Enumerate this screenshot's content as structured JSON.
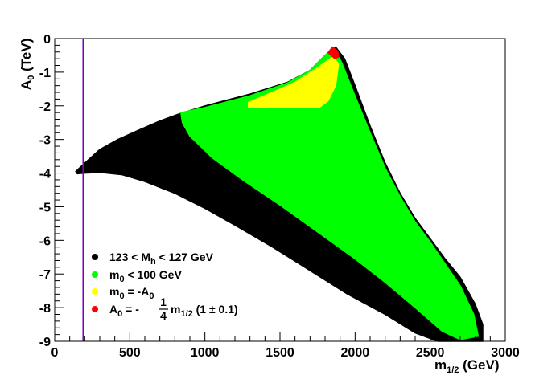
{
  "chart_data": {
    "type": "scatter",
    "xlabel": {
      "main": "m",
      "sub": "1/2",
      "unit": " (GeV)"
    },
    "ylabel": {
      "main": "A",
      "sub": "0",
      "unit": " (TeV)"
    },
    "xlim": [
      0,
      3000
    ],
    "ylim": [
      -9,
      0
    ],
    "x_ticks": [
      "0",
      "500",
      "1000",
      "1500",
      "2000",
      "2500",
      "3000"
    ],
    "y_ticks": [
      "0",
      "-1",
      "-2",
      "-3",
      "-4",
      "-5",
      "-6",
      "-7",
      "-8",
      "-9"
    ],
    "grid": false,
    "legend_placement": "bottom-left",
    "vertical_line": {
      "x": 190,
      "color": "#8000c0"
    },
    "series": [
      {
        "key": "higgs",
        "legend": {
          "a": "123 < M",
          "a_sub": "h",
          "b": " < 127 GeV"
        },
        "color": "#000000",
        "region": [
          [
            140,
            -3.95
          ],
          [
            200,
            -3.7
          ],
          [
            300,
            -3.3
          ],
          [
            420,
            -3.0
          ],
          [
            560,
            -2.72
          ],
          [
            700,
            -2.45
          ],
          [
            820,
            -2.25
          ],
          [
            1000,
            -2.0
          ],
          [
            1300,
            -1.65
          ],
          [
            1550,
            -1.3
          ],
          [
            1700,
            -0.95
          ],
          [
            1800,
            -0.5
          ],
          [
            1870,
            -0.25
          ],
          [
            1930,
            -0.6
          ],
          [
            2000,
            -1.4
          ],
          [
            2100,
            -2.6
          ],
          [
            2200,
            -3.7
          ],
          [
            2300,
            -4.6
          ],
          [
            2400,
            -5.35
          ],
          [
            2500,
            -5.95
          ],
          [
            2600,
            -6.55
          ],
          [
            2700,
            -7.1
          ],
          [
            2800,
            -7.9
          ],
          [
            2850,
            -8.5
          ],
          [
            2850,
            -9.0
          ],
          [
            2550,
            -9.0
          ],
          [
            2400,
            -8.75
          ],
          [
            2200,
            -8.2
          ],
          [
            1950,
            -7.6
          ],
          [
            1700,
            -6.9
          ],
          [
            1450,
            -6.2
          ],
          [
            1200,
            -5.55
          ],
          [
            1000,
            -5.05
          ],
          [
            800,
            -4.6
          ],
          [
            600,
            -4.25
          ],
          [
            450,
            -4.05
          ],
          [
            300,
            -3.98
          ],
          [
            200,
            -4.0
          ],
          [
            150,
            -4.02
          ]
        ]
      },
      {
        "key": "m0",
        "legend": {
          "a": "m",
          "a_sub": "0",
          "b": " < 100 GeV"
        },
        "color": "#00ff00",
        "region": [
          [
            840,
            -2.2
          ],
          [
            1000,
            -2.05
          ],
          [
            1300,
            -1.7
          ],
          [
            1550,
            -1.32
          ],
          [
            1700,
            -0.95
          ],
          [
            1800,
            -0.5
          ],
          [
            1860,
            -0.32
          ],
          [
            1910,
            -0.7
          ],
          [
            1990,
            -1.6
          ],
          [
            2100,
            -2.8
          ],
          [
            2200,
            -3.85
          ],
          [
            2300,
            -4.7
          ],
          [
            2400,
            -5.45
          ],
          [
            2500,
            -6.05
          ],
          [
            2600,
            -6.7
          ],
          [
            2700,
            -7.35
          ],
          [
            2790,
            -8.2
          ],
          [
            2820,
            -8.85
          ],
          [
            2700,
            -8.95
          ],
          [
            2580,
            -8.7
          ],
          [
            2400,
            -8.0
          ],
          [
            2200,
            -7.25
          ],
          [
            2000,
            -6.55
          ],
          [
            1750,
            -5.75
          ],
          [
            1500,
            -4.95
          ],
          [
            1250,
            -4.2
          ],
          [
            1050,
            -3.55
          ],
          [
            900,
            -2.9
          ],
          [
            850,
            -2.5
          ]
        ]
      },
      {
        "key": "m0A0",
        "legend": {
          "a": "m",
          "a_sub": "0",
          "b": " = -A",
          "b_sub": "0"
        },
        "color": "#ffff00",
        "region": [
          [
            1290,
            -2.05
          ],
          [
            1290,
            -1.9
          ],
          [
            1450,
            -1.6
          ],
          [
            1600,
            -1.3
          ],
          [
            1740,
            -0.9
          ],
          [
            1850,
            -0.55
          ],
          [
            1890,
            -0.75
          ],
          [
            1870,
            -1.4
          ],
          [
            1820,
            -1.85
          ],
          [
            1760,
            -2.05
          ]
        ]
      },
      {
        "key": "A0m12",
        "legend": {
          "a": "A",
          "a_sub": "0",
          "b": " = -",
          "frac": [
            "1",
            "4"
          ],
          "c": "m",
          "c_sub": "1/2",
          "d": " (1 ± 0.1)"
        },
        "color": "#ff0000",
        "region": [
          [
            1820,
            -0.42
          ],
          [
            1850,
            -0.25
          ],
          [
            1885,
            -0.38
          ],
          [
            1890,
            -0.55
          ],
          [
            1865,
            -0.6
          ]
        ]
      }
    ]
  }
}
